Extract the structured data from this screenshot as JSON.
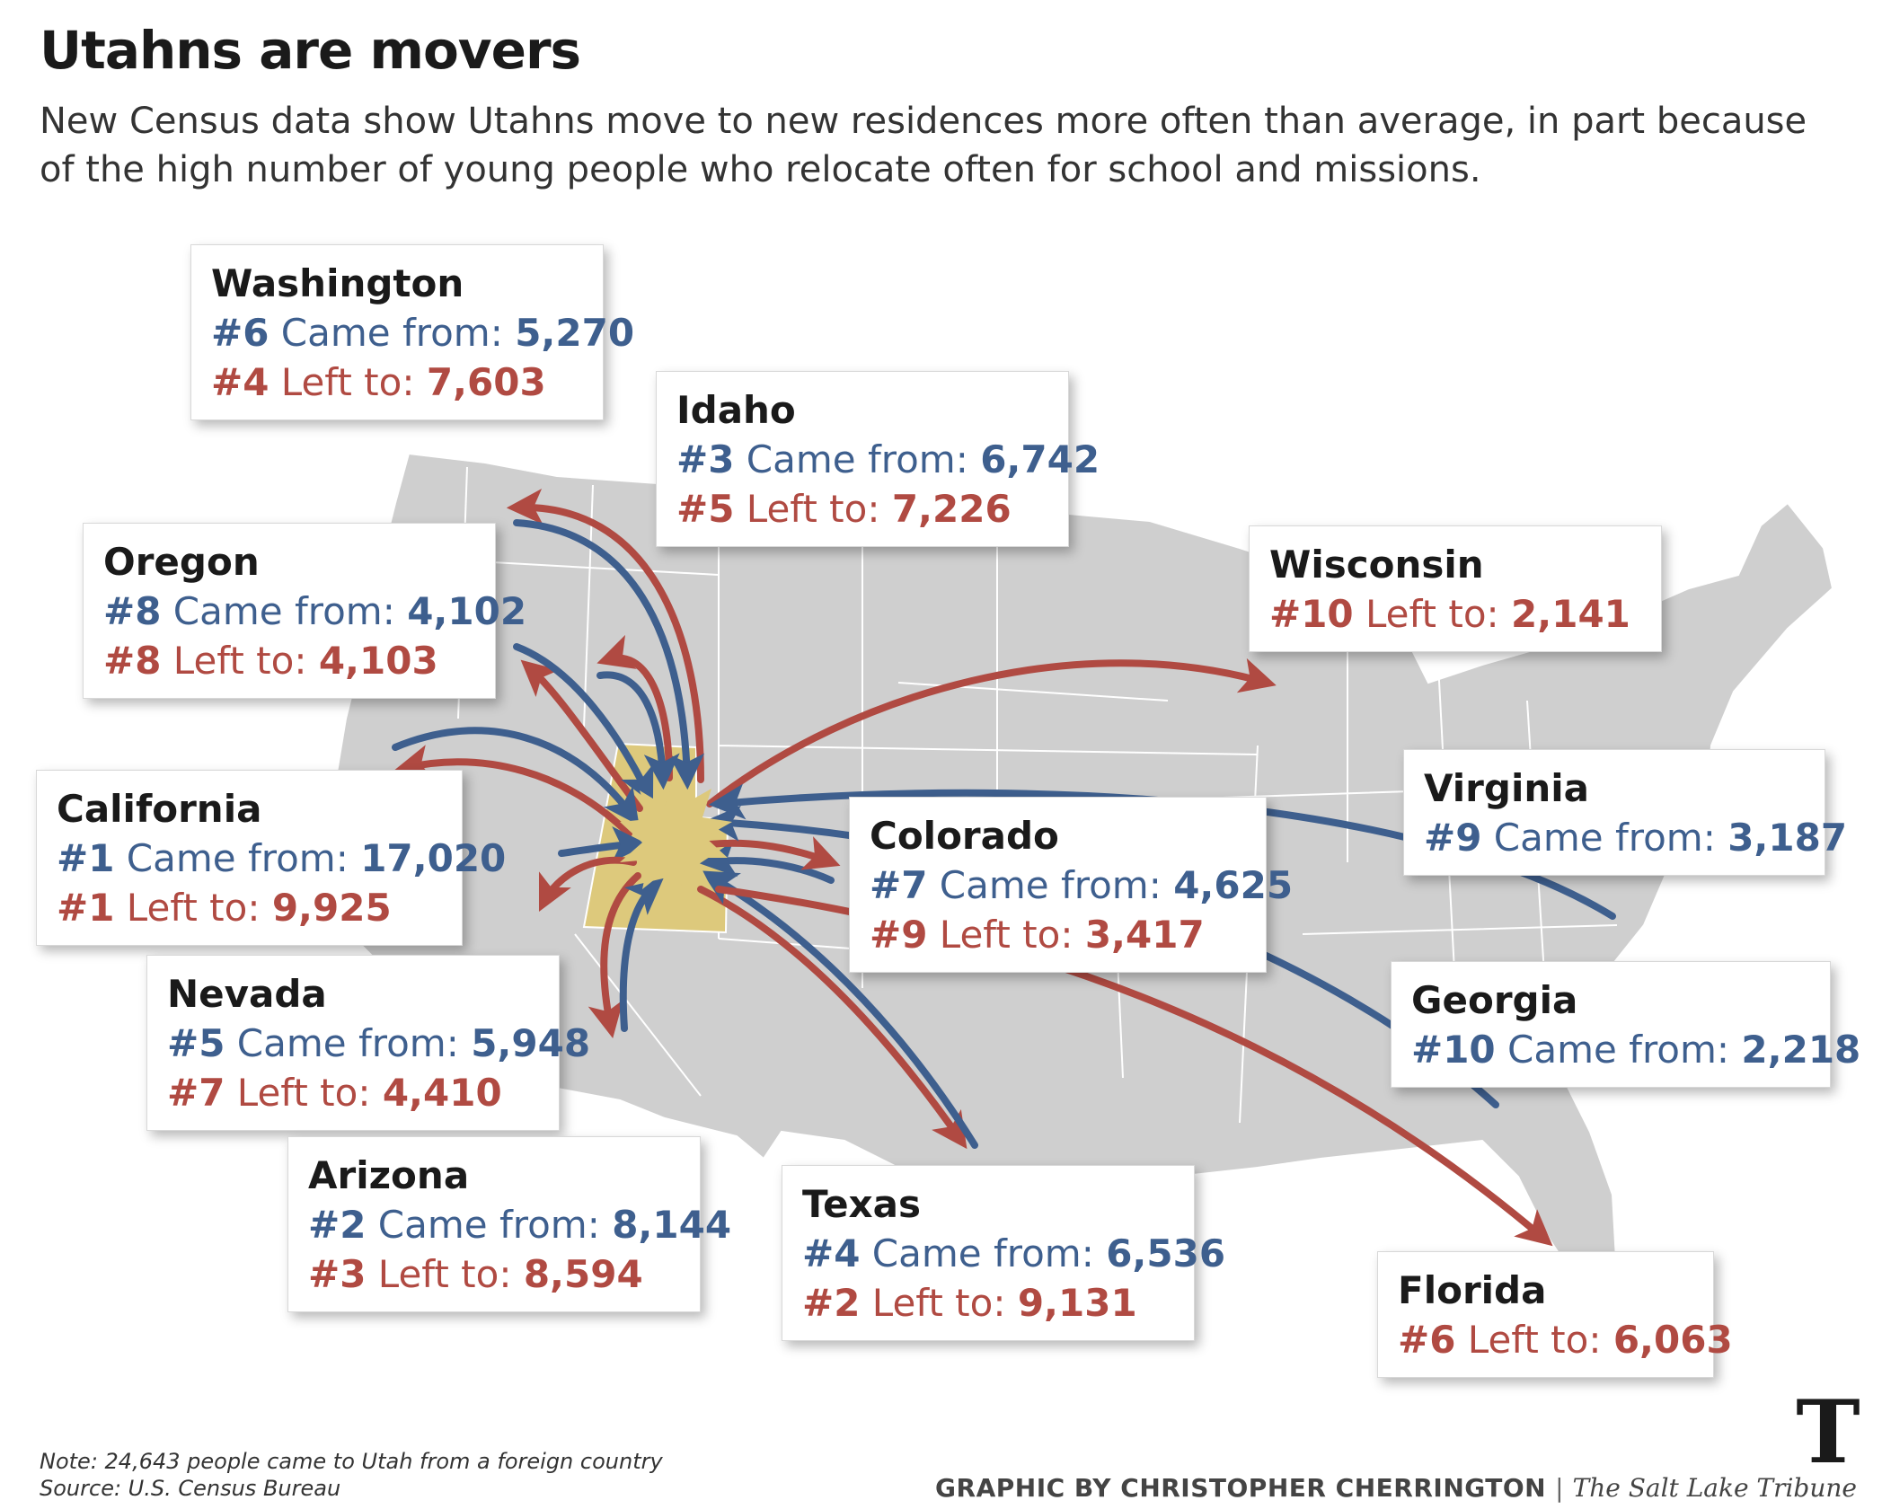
{
  "header": {
    "title": "Utahns are movers",
    "subtitle": "New Census data show Utahns move to new residences more often than average, in part because of the high number of young people who relocate often for school and missions."
  },
  "labels": {
    "came_from": "Came from:",
    "left_to": "Left to:"
  },
  "states": [
    {
      "name": "Washington",
      "came_rank": "#6",
      "came": "5,270",
      "left_rank": "#4",
      "left": "7,603"
    },
    {
      "name": "Idaho",
      "came_rank": "#3",
      "came": "6,742",
      "left_rank": "#5",
      "left": "7,226"
    },
    {
      "name": "Oregon",
      "came_rank": "#8",
      "came": "4,102",
      "left_rank": "#8",
      "left": "4,103"
    },
    {
      "name": "Wisconsin",
      "left_rank": "#10",
      "left": "2,141"
    },
    {
      "name": "California",
      "came_rank": "#1",
      "came": "17,020",
      "left_rank": "#1",
      "left": "9,925"
    },
    {
      "name": "Colorado",
      "came_rank": "#7",
      "came": "4,625",
      "left_rank": "#9",
      "left": "3,417"
    },
    {
      "name": "Virginia",
      "came_rank": "#9",
      "came": "3,187"
    },
    {
      "name": "Nevada",
      "came_rank": "#5",
      "came": "5,948",
      "left_rank": "#7",
      "left": "4,410"
    },
    {
      "name": "Georgia",
      "came_rank": "#10",
      "came": "2,218"
    },
    {
      "name": "Arizona",
      "came_rank": "#2",
      "came": "8,144",
      "left_rank": "#3",
      "left": "8,594"
    },
    {
      "name": "Texas",
      "came_rank": "#4",
      "came": "6,536",
      "left_rank": "#2",
      "left": "9,131"
    },
    {
      "name": "Florida",
      "left_rank": "#6",
      "left": "6,063"
    }
  ],
  "footer": {
    "note": "Note: 24,643 people came to Utah from a foreign country",
    "source": "Source: U.S. Census Bureau",
    "credit": "GRAPHIC BY CHRISTOPHER CHERRINGTON",
    "separator": "|",
    "publisher": "The Salt Lake Tribune"
  },
  "colors": {
    "came": "#3e5f8e",
    "left": "#b04a42",
    "map": "#cfcfcf",
    "utah": "#ddc97c"
  },
  "icons": {
    "logo": "tribune-t-logo"
  }
}
